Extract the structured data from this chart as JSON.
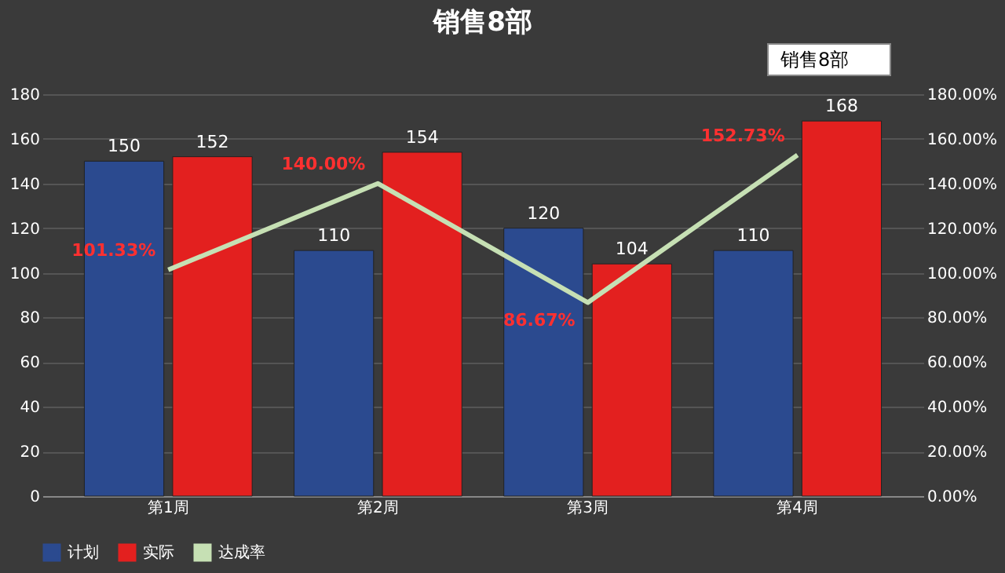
{
  "chart_data": {
    "type": "bar",
    "title": "销售8部",
    "categories": [
      "第1周",
      "第2周",
      "第3周",
      "第4周"
    ],
    "series": [
      {
        "name": "计划",
        "color": "#2b4a8f",
        "values": [
          150,
          110,
          120,
          110
        ]
      },
      {
        "name": "实际",
        "color": "#e3201f",
        "values": [
          152,
          154,
          104,
          168
        ]
      },
      {
        "name": "达成率",
        "type": "line",
        "axis": "y2",
        "color": "#c6e0b4",
        "values": [
          101.33,
          140.0,
          86.67,
          152.73
        ],
        "value_labels": [
          "101.33%",
          "140.00%",
          "86.67%",
          "152.73%"
        ]
      }
    ],
    "ylim": [
      0,
      180
    ],
    "yticks": [
      0,
      20,
      40,
      60,
      80,
      100,
      120,
      140,
      160,
      180
    ],
    "y2lim": [
      0,
      180
    ],
    "y2ticks": [
      {
        "value": 0,
        "label": "0.00%"
      },
      {
        "value": 20,
        "label": "20.00%"
      },
      {
        "value": 40,
        "label": "40.00%"
      },
      {
        "value": 60,
        "label": "60.00%"
      },
      {
        "value": 80,
        "label": "80.00%"
      },
      {
        "value": 100,
        "label": "100.00%"
      },
      {
        "value": 120,
        "label": "120.00%"
      },
      {
        "value": 140,
        "label": "140.00%"
      },
      {
        "value": 160,
        "label": "160.00%"
      },
      {
        "value": 180,
        "label": "180.00%"
      }
    ],
    "data_labels": true,
    "grid": "y",
    "legend": "bottom",
    "marker": "none",
    "line_style": "solid",
    "annotations": [
      "销售8部"
    ]
  }
}
